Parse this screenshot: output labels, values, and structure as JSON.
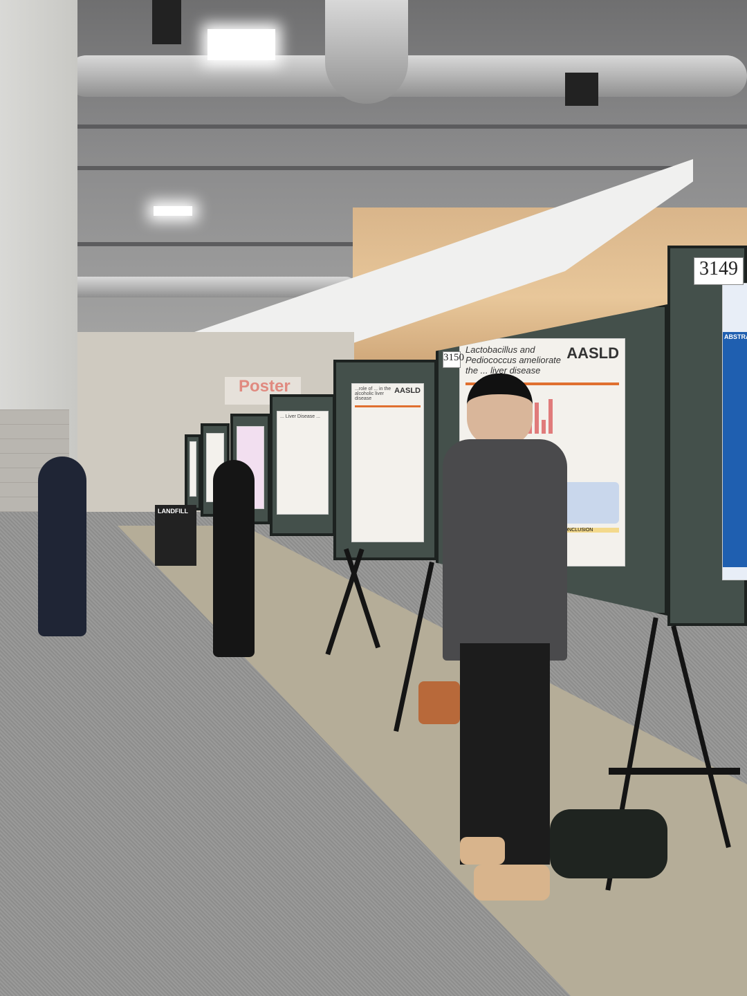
{
  "scene": {
    "description_type": "poster-session-photo",
    "colors": {
      "board": "#44504b",
      "floor": "#9a9a99",
      "walkway": "#b5ad98",
      "jacket": "#4a4a4c",
      "accent_orange": "#e07030"
    }
  },
  "boards": {
    "board_3149": {
      "number": "3149",
      "section": "ABSTRACT"
    },
    "board_3150": {
      "number": "3150",
      "title": "Lactobacillus and Pediococcus ameliorate the ... liver disease",
      "logo": "AASLD",
      "section": "CONCLUSION"
    },
    "board_mid": {
      "title": "...role of ... in the alcoholic liver disease",
      "logo": "AASLD"
    },
    "board_far": {
      "title": "... Liver Disease ..."
    }
  },
  "signs": {
    "bin_label": "LANDFILL",
    "banner": "Poster"
  }
}
